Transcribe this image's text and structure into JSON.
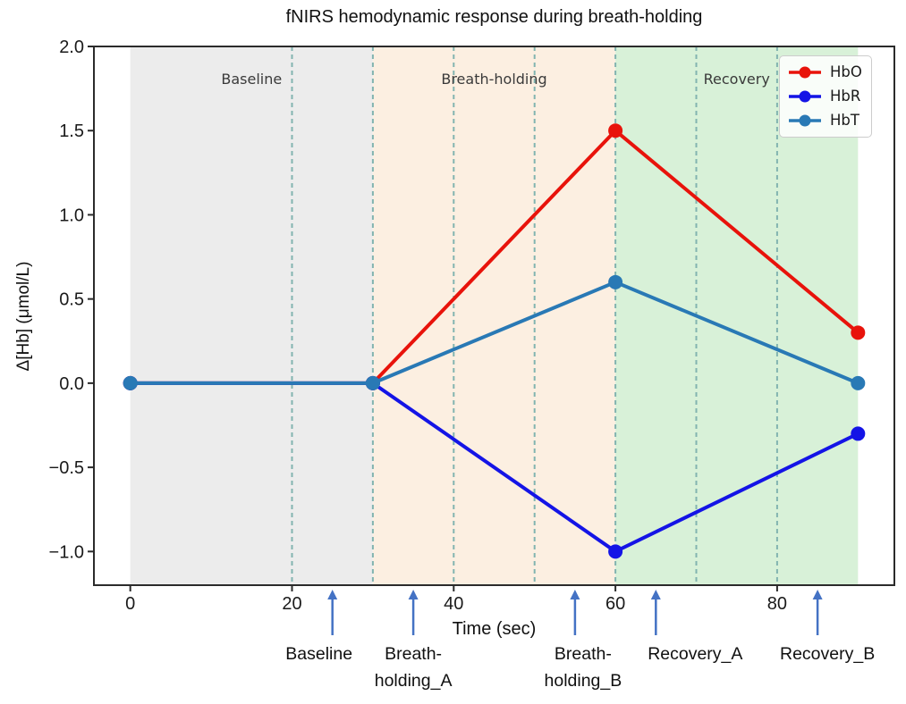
{
  "chart_data": {
    "type": "line",
    "title": "fNIRS hemodynamic response during breath-holding",
    "xlabel": "Time (sec)",
    "ylabel": "Δ[Hb] (μmol/L)",
    "xlim": [
      -4.5,
      94.5
    ],
    "ylim": [
      -1.2,
      2.0
    ],
    "grid": false,
    "xticks": [
      {
        "value": 0,
        "label": "0"
      },
      {
        "value": 20,
        "label": "20"
      },
      {
        "value": 40,
        "label": "40"
      },
      {
        "value": 60,
        "label": "60"
      },
      {
        "value": 80,
        "label": "80"
      }
    ],
    "yticks": [
      {
        "value": 2.0,
        "label": "2.0"
      },
      {
        "value": 1.5,
        "label": "1.5"
      },
      {
        "value": 1.0,
        "label": "1.0"
      },
      {
        "value": 0.5,
        "label": "0.5"
      },
      {
        "value": 0.0,
        "label": "0.0"
      },
      {
        "value": -0.5,
        "label": "−0.5"
      },
      {
        "value": -1.0,
        "label": "−1.0"
      }
    ],
    "x": [
      0,
      30,
      60,
      90
    ],
    "series": [
      {
        "name": "HbO",
        "color": "#e8130b",
        "values": [
          0.0,
          0.0,
          1.5,
          0.3
        ]
      },
      {
        "name": "HbR",
        "color": "#1414e6",
        "values": [
          0.0,
          0.0,
          -1.0,
          -0.3
        ]
      },
      {
        "name": "HbT",
        "color": "#2979b5",
        "values": [
          0.0,
          0.0,
          0.6,
          0.0
        ]
      }
    ],
    "regions": [
      {
        "label": "Baseline",
        "start": 0,
        "end": 30,
        "color": "#ececec",
        "label_time": 15
      },
      {
        "label": "Breath-holding",
        "start": 30,
        "end": 60,
        "color": "#fcefe1",
        "label_time": 45
      },
      {
        "label": "Recovery",
        "start": 60,
        "end": 90,
        "color": "#d8f1d8",
        "label_time": 75
      }
    ],
    "dashed_lines": {
      "times": [
        20,
        30,
        40,
        50,
        60,
        70,
        80
      ],
      "color": "#82b4b0"
    },
    "events": [
      {
        "time": 25,
        "lines": [
          "Baseline"
        ]
      },
      {
        "time": 35,
        "lines": [
          "Breath-",
          "holding_A"
        ]
      },
      {
        "time": 55,
        "lines": [
          "Breath-",
          "holding_B"
        ]
      },
      {
        "time": 65,
        "lines": [
          "Recovery_A"
        ]
      },
      {
        "time": 85,
        "lines": [
          "Recovery_B"
        ]
      }
    ],
    "event_arrow_color": "#4472c4",
    "legend": {
      "position": "upper right",
      "entries": [
        "HbO",
        "HbR",
        "HbT"
      ]
    },
    "axis_color": "#2b2b2b"
  }
}
